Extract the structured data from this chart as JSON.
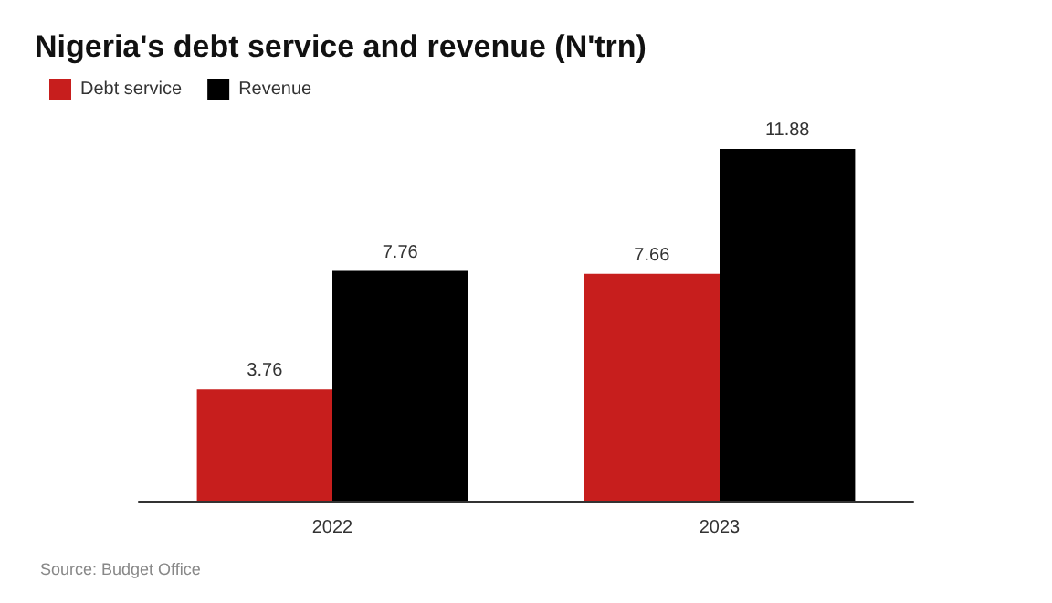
{
  "chart_data": {
    "type": "bar",
    "title": "Nigeria's debt service and revenue (N'trn)",
    "categories": [
      "2022",
      "2023"
    ],
    "series": [
      {
        "name": "Debt service",
        "color": "#c71e1d",
        "values": [
          3.76,
          7.66
        ]
      },
      {
        "name": "Revenue",
        "color": "#000000",
        "values": [
          7.76,
          11.88
        ]
      }
    ],
    "data_labels": true,
    "legend": "top left",
    "annotations": [
      "Source: Budget Office"
    ]
  }
}
